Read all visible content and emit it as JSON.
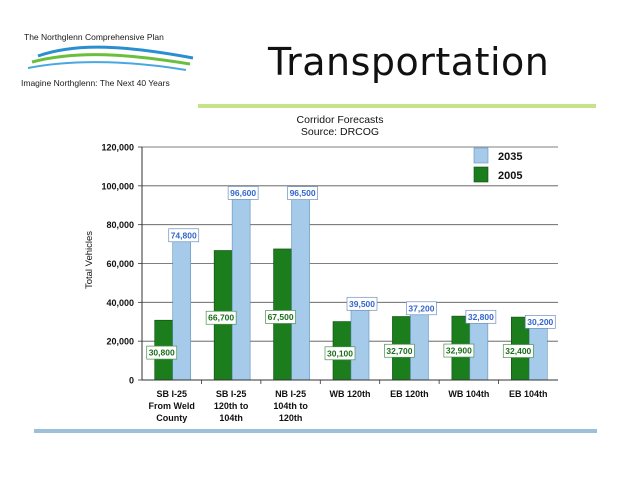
{
  "logo": {
    "line1": "The Northglenn Comprehensive Plan",
    "line2": "Imagine Northglenn: The Next 40 Years"
  },
  "slide_title": "Transportation",
  "colors": {
    "series_2035": "#a6cbea",
    "series_2005": "#1b7d1b",
    "label_2035_text": "#3366cc",
    "label_2005_text": "#1b6e1b",
    "accent_green_rule": "#c6e38c",
    "accent_blue_rule": "#9cc0d8"
  },
  "chart_data": {
    "type": "bar",
    "title": "Corridor Forecasts",
    "subtitle": "Source: DRCOG",
    "ylabel": "Total Vehicles",
    "xlabel": "",
    "ylim": [
      0,
      120000
    ],
    "yticks": [
      "0",
      "20,000",
      "40,000",
      "60,000",
      "80,000",
      "100,000",
      "120,000"
    ],
    "grid": true,
    "legend_position": "top-right",
    "categories": [
      [
        "SB I-25",
        "From Weld",
        "County"
      ],
      [
        "SB I-25",
        "120th to",
        "104th"
      ],
      [
        "NB I-25",
        "104th to",
        "120th"
      ],
      [
        "WB 120th"
      ],
      [
        "EB 120th"
      ],
      [
        "WB 104th"
      ],
      [
        "EB 104th"
      ]
    ],
    "series": [
      {
        "name": "2005",
        "values": [
          30800,
          66700,
          67500,
          30100,
          32700,
          32900,
          32400
        ],
        "labels": [
          "30,800",
          "66,700",
          "67,500",
          "30,100",
          "32,700",
          "32,900",
          "32,400"
        ]
      },
      {
        "name": "2035",
        "values": [
          74800,
          96600,
          96500,
          39500,
          37200,
          32800,
          30200
        ],
        "labels": [
          "74,800",
          "96,600",
          "96,500",
          "39,500",
          "37,200",
          "32,800",
          "30,200"
        ]
      }
    ],
    "legend": [
      "2035",
      "2005"
    ]
  }
}
